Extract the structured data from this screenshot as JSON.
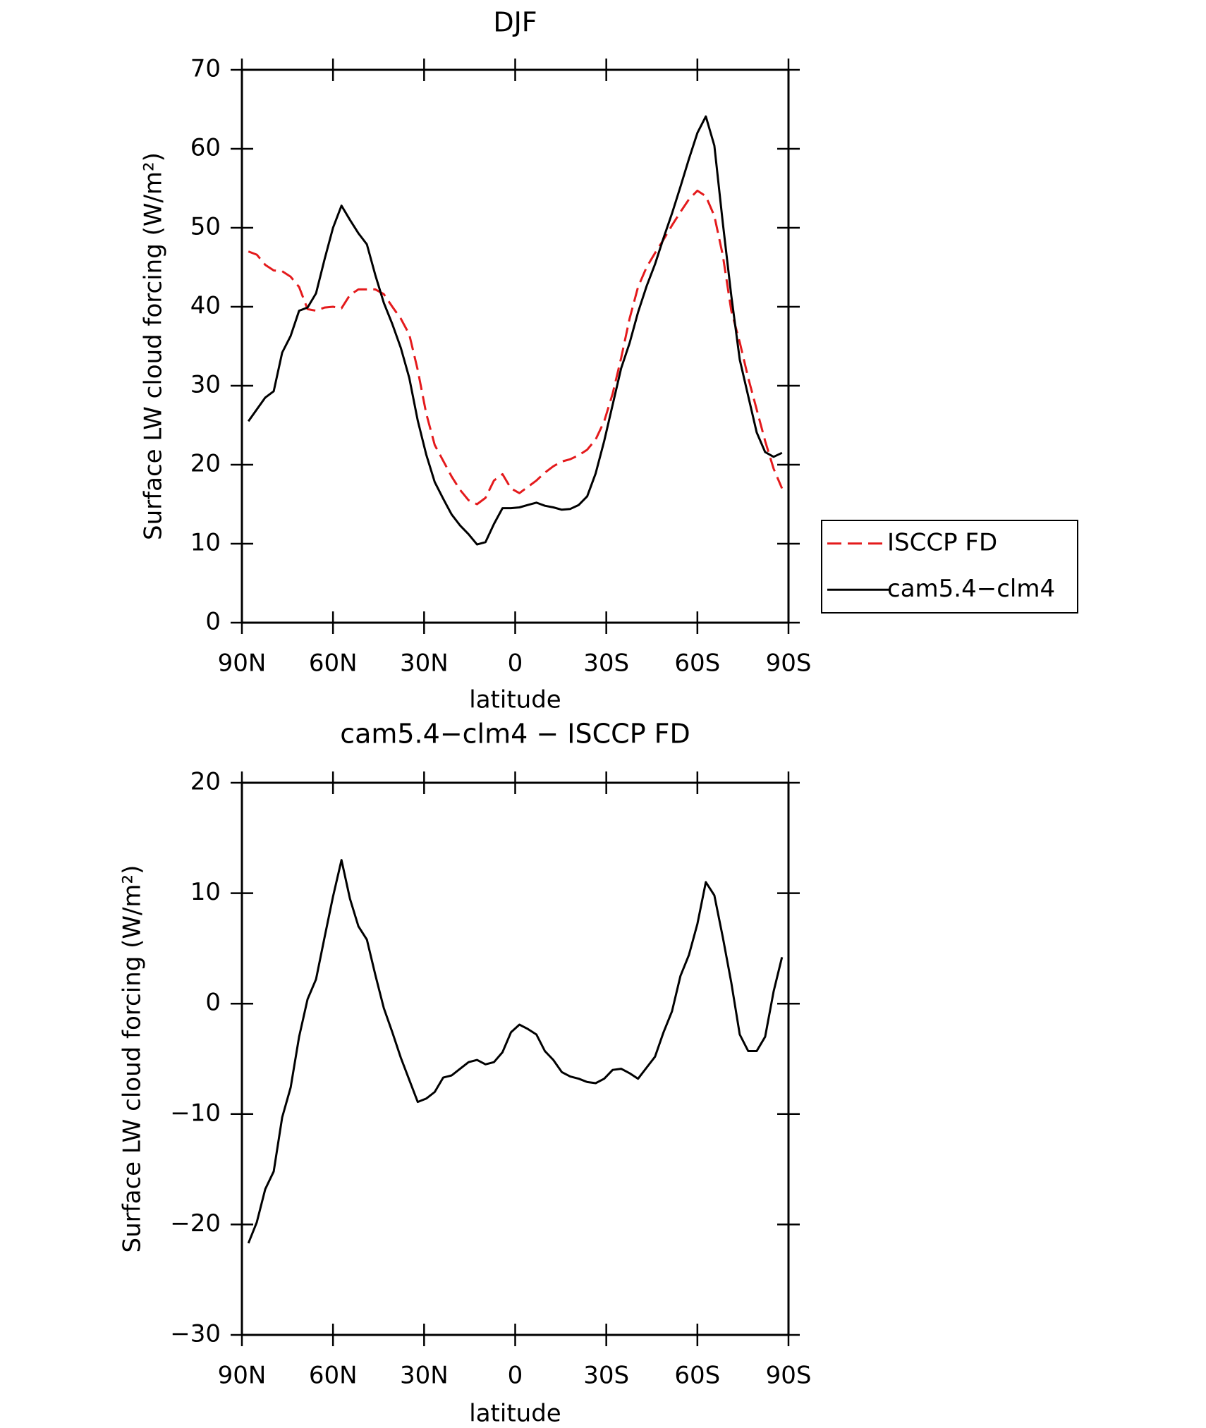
{
  "chart_data": [
    {
      "type": "line",
      "title": "DJF",
      "xlabel": "latitude",
      "ylabel": "Surface LW cloud forcing (W/m²)",
      "xlim": [
        90,
        -90
      ],
      "xticks": [
        {
          "value": 90,
          "label": "90N"
        },
        {
          "value": 60,
          "label": "60N"
        },
        {
          "value": 30,
          "label": "30N"
        },
        0,
        {
          "value": -30,
          "label": "30S"
        },
        {
          "value": -60,
          "label": "60S"
        },
        {
          "value": -90,
          "label": "90S"
        }
      ],
      "ylim": [
        0,
        70
      ],
      "yticks": [
        0,
        10,
        20,
        30,
        40,
        50,
        60,
        70
      ],
      "legend": "right",
      "x": [
        87.86,
        85.1,
        82.31,
        79.53,
        76.74,
        73.95,
        71.16,
        68.37,
        65.58,
        62.79,
        60,
        57.21,
        54.42,
        51.63,
        48.84,
        46.05,
        43.26,
        40.46,
        37.67,
        34.88,
        32.09,
        29.3,
        26.51,
        23.72,
        20.93,
        18.14,
        15.35,
        12.56,
        9.77,
        6.98,
        4.19,
        1.4,
        -1.4,
        -4.19,
        -6.98,
        -9.77,
        -12.56,
        -15.35,
        -18.14,
        -20.93,
        -23.72,
        -26.51,
        -29.3,
        -32.09,
        -34.88,
        -37.67,
        -40.46,
        -43.26,
        -46.05,
        -48.84,
        -51.63,
        -54.42,
        -57.21,
        -60,
        -62.79,
        -65.58,
        -68.37,
        -71.16,
        -73.95,
        -76.74,
        -79.53,
        -82.31,
        -85.1,
        -87.86
      ],
      "series": [
        {
          "name": "ISCCP FD",
          "color": "#e41a1c",
          "style": "dashed",
          "values": [
            47.0,
            46.6,
            45.3,
            44.6,
            44.5,
            43.8,
            42.5,
            39.7,
            39.5,
            39.9,
            40.0,
            39.8,
            41.5,
            42.2,
            42.2,
            42.2,
            41.6,
            40.0,
            38.5,
            36.5,
            32.0,
            26.5,
            22.5,
            20.5,
            18.5,
            16.8,
            15.5,
            15.0,
            15.8,
            18.0,
            18.8,
            17.0,
            16.4,
            17.2,
            18.0,
            19.0,
            19.8,
            20.4,
            20.7,
            21.2,
            21.9,
            23.2,
            25.5,
            29.0,
            33.5,
            38.5,
            42.5,
            45.0,
            46.8,
            48.5,
            50.3,
            52.0,
            53.6,
            54.7,
            54.0,
            51.5,
            46.5,
            39.5,
            35.5,
            31.0,
            27.0,
            23.0,
            19.5,
            17.0
          ]
        },
        {
          "name": "cam5.4−clm4",
          "color": "#000000",
          "style": "solid",
          "values": [
            25.5,
            27.0,
            28.5,
            29.3,
            34.2,
            36.3,
            39.5,
            39.9,
            41.7,
            46.0,
            50.0,
            52.8,
            51.0,
            49.3,
            47.9,
            44.0,
            40.5,
            37.8,
            34.8,
            31.0,
            25.6,
            21.3,
            17.8,
            15.7,
            13.7,
            12.3,
            11.2,
            9.9,
            10.2,
            12.5,
            14.5,
            14.5,
            14.6,
            14.9,
            15.2,
            14.8,
            14.6,
            14.3,
            14.4,
            14.9,
            16.0,
            18.9,
            23.0,
            27.6,
            32.2,
            35.4,
            39.3,
            42.6,
            45.4,
            48.7,
            51.8,
            55.2,
            58.7,
            62.0,
            64.1,
            60.4,
            50.6,
            41.4,
            33.3,
            28.7,
            24.1,
            21.6,
            21.0,
            21.5
          ]
        }
      ]
    },
    {
      "type": "line",
      "title": "cam5.4−clm4 − ISCCP FD",
      "xlabel": "latitude",
      "ylabel": "Surface LW cloud forcing (W/m²)",
      "xlim": [
        90,
        -90
      ],
      "xticks": [
        {
          "value": 90,
          "label": "90N"
        },
        {
          "value": 60,
          "label": "60N"
        },
        {
          "value": 30,
          "label": "30N"
        },
        0,
        {
          "value": -30,
          "label": "30S"
        },
        {
          "value": -60,
          "label": "60S"
        },
        {
          "value": -90,
          "label": "90S"
        }
      ],
      "ylim": [
        -30,
        20
      ],
      "yticks": [
        {
          "value": -30,
          "label": "−30"
        },
        {
          "value": -20,
          "label": "−20"
        },
        {
          "value": -10,
          "label": "−10"
        },
        0,
        10,
        20
      ],
      "x": [
        87.86,
        85.1,
        82.31,
        79.53,
        76.74,
        73.95,
        71.16,
        68.37,
        65.58,
        62.79,
        60,
        57.21,
        54.42,
        51.63,
        48.84,
        46.05,
        43.26,
        40.46,
        37.67,
        34.88,
        32.09,
        29.3,
        26.51,
        23.72,
        20.93,
        18.14,
        15.35,
        12.56,
        9.77,
        6.98,
        4.19,
        1.4,
        -1.4,
        -4.19,
        -6.98,
        -9.77,
        -12.56,
        -15.35,
        -18.14,
        -20.93,
        -23.72,
        -26.51,
        -29.3,
        -32.09,
        -34.88,
        -37.67,
        -40.46,
        -43.26,
        -46.05,
        -48.84,
        -51.63,
        -54.42,
        -57.21,
        -60,
        -62.79,
        -65.58,
        -68.37,
        -71.16,
        -73.95,
        -76.74,
        -79.53,
        -82.31,
        -85.1,
        -87.86
      ],
      "series": [
        {
          "color": "#000000",
          "style": "solid",
          "values": [
            -21.7,
            -19.8,
            -16.8,
            -15.2,
            -10.3,
            -7.6,
            -3.0,
            0.4,
            2.2,
            6.0,
            9.7,
            13.0,
            9.5,
            7.0,
            5.8,
            2.6,
            -0.4,
            -2.6,
            -4.9,
            -6.9,
            -8.9,
            -8.6,
            -8.0,
            -6.7,
            -6.5,
            -5.9,
            -5.3,
            -5.1,
            -5.5,
            -5.3,
            -4.4,
            -2.6,
            -1.9,
            -2.3,
            -2.8,
            -4.3,
            -5.1,
            -6.2,
            -6.6,
            -6.8,
            -7.1,
            -7.2,
            -6.8,
            -6.0,
            -5.9,
            -6.3,
            -6.8,
            -5.8,
            -4.8,
            -2.6,
            -0.7,
            2.5,
            4.4,
            7.2,
            11.0,
            9.8,
            6.0,
            1.9,
            -2.8,
            -4.3,
            -4.3,
            -3.0,
            1.1,
            4.2
          ]
        }
      ]
    }
  ]
}
